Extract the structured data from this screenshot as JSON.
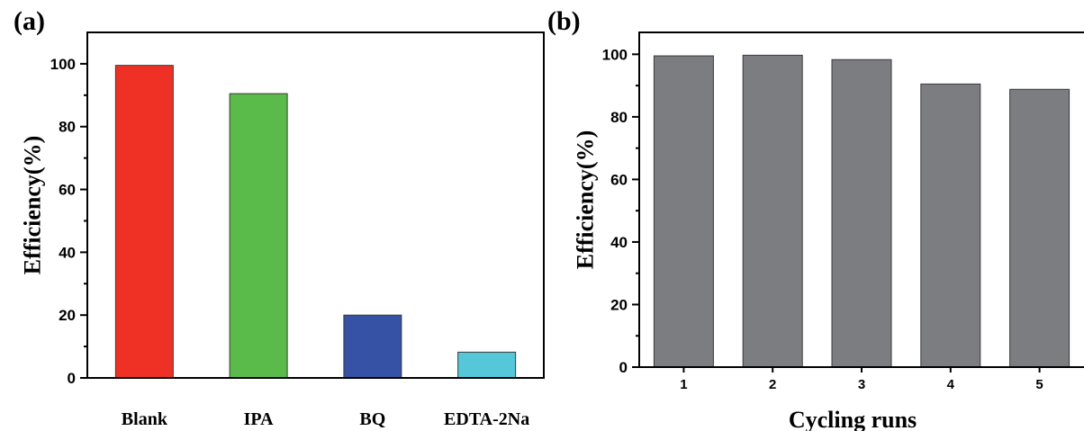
{
  "chart_data": [
    {
      "type": "bar",
      "panel_label": "(a)",
      "categories": [
        "Blank",
        "IPA",
        "BQ",
        "EDTA-2Na"
      ],
      "values": [
        99.5,
        90.5,
        20,
        8.2
      ],
      "colors": [
        "#ee3124",
        "#5bbb4a",
        "#3652a4",
        "#56c6d9"
      ],
      "xlabel": "",
      "ylabel": "Efficiency(%)",
      "ylim": [
        0,
        110
      ],
      "yticks": [
        0,
        20,
        40,
        60,
        80,
        100
      ],
      "grid": false
    },
    {
      "type": "bar",
      "panel_label": "(b)",
      "categories": [
        "1",
        "2",
        "3",
        "4",
        "5"
      ],
      "values": [
        99.5,
        99.7,
        98.3,
        90.5,
        88.8
      ],
      "colors": [
        "#7b7d80",
        "#7b7d80",
        "#7b7d80",
        "#7b7d80",
        "#7b7d80"
      ],
      "xlabel": "Cycling runs",
      "ylabel": "Efficiency(%)",
      "ylim": [
        0,
        107
      ],
      "yticks": [
        0,
        20,
        40,
        60,
        80,
        100
      ],
      "grid": false
    }
  ]
}
